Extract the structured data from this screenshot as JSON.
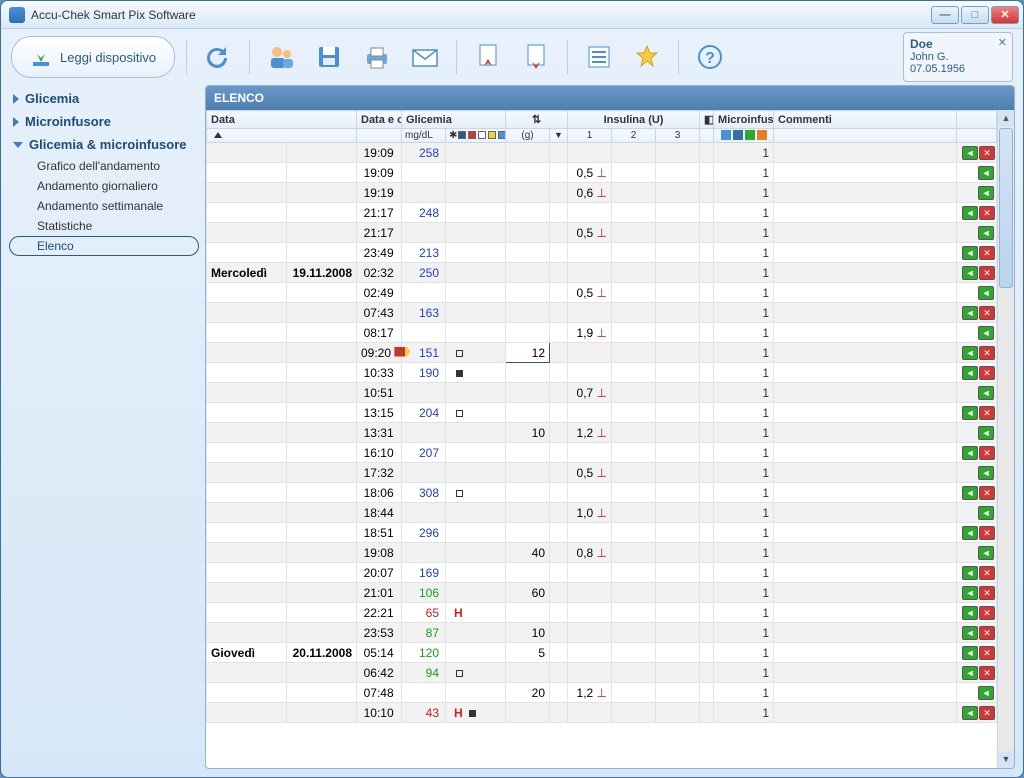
{
  "window": {
    "title": "Accu-Chek Smart Pix Software"
  },
  "toolbar": {
    "read_device": "Leggi dispositivo",
    "icons": [
      "undo",
      "users",
      "save",
      "print",
      "mail",
      "import",
      "export",
      "list-settings",
      "favorite",
      "help"
    ]
  },
  "patient": {
    "surname": "Doe",
    "firstname": "John G.",
    "dob": "07.05.1956"
  },
  "sidebar": {
    "items": [
      {
        "label": "Glicemia",
        "expanded": false,
        "bold": true
      },
      {
        "label": "Microinfusore",
        "expanded": false,
        "bold": true
      },
      {
        "label": "Glicemia & microinfusore",
        "expanded": true,
        "bold": true,
        "children": [
          {
            "label": "Grafico dell'andamento"
          },
          {
            "label": "Andamento giornaliero"
          },
          {
            "label": "Andamento settimanale"
          },
          {
            "label": "Statistiche"
          },
          {
            "label": "Elenco",
            "selected": true
          }
        ]
      }
    ]
  },
  "main": {
    "title": "ELENCO",
    "columns": {
      "data": "Data",
      "data_ora": "Data e ora",
      "glicemia": "Glicemia",
      "glicemia_unit": "mg/dL",
      "carb_unit": "(g)",
      "insulina": "Insulina (U)",
      "ins_cols": [
        "1",
        "2",
        "3"
      ],
      "microinfus": "Microinfus",
      "commenti": "Commenti"
    },
    "glicemia_marker_colors": [
      "#2C5A8A",
      "#D43535",
      "#FFFFFF",
      "#F4D03F",
      "#4A90D9",
      "#E67E22"
    ],
    "microinfus_hdr_colors": [
      "#4A90D9",
      "#3A6EA5",
      "#2FA82F",
      "#E67E22"
    ],
    "rows": [
      {
        "day": "",
        "date": "",
        "time": "19:09",
        "bg": "258",
        "bgc": "blue",
        "carb": "",
        "ins": "",
        "micro": "1",
        "act": [
          "g",
          "r"
        ]
      },
      {
        "day": "",
        "date": "",
        "time": "19:09",
        "bg": "",
        "carb": "",
        "ins": "0,5",
        "micro": "1",
        "act": [
          "g"
        ]
      },
      {
        "day": "",
        "date": "",
        "time": "19:19",
        "bg": "",
        "carb": "",
        "ins": "0,6",
        "micro": "1",
        "act": [
          "g"
        ]
      },
      {
        "day": "",
        "date": "",
        "time": "21:17",
        "bg": "248",
        "bgc": "blue",
        "carb": "",
        "ins": "",
        "micro": "1",
        "act": [
          "g",
          "r"
        ]
      },
      {
        "day": "",
        "date": "",
        "time": "21:17",
        "bg": "",
        "carb": "",
        "ins": "0,5",
        "micro": "1",
        "act": [
          "g"
        ]
      },
      {
        "day": "",
        "date": "",
        "time": "23:49",
        "bg": "213",
        "bgc": "blue",
        "carb": "",
        "ins": "",
        "micro": "1",
        "act": [
          "g",
          "r"
        ]
      },
      {
        "day": "Mercoledì",
        "date": "19.11.2008",
        "time": "02:32",
        "bg": "250",
        "bgc": "blue",
        "carb": "",
        "ins": "",
        "micro": "1",
        "act": [
          "g",
          "r"
        ],
        "split": true
      },
      {
        "day": "",
        "date": "",
        "time": "02:49",
        "bg": "",
        "carb": "",
        "ins": "0,5",
        "micro": "1",
        "act": [
          "g"
        ]
      },
      {
        "day": "",
        "date": "",
        "time": "07:43",
        "bg": "163",
        "bgc": "blue",
        "carb": "",
        "ins": "",
        "micro": "1",
        "act": [
          "g",
          "r"
        ]
      },
      {
        "day": "",
        "date": "",
        "time": "08:17",
        "bg": "",
        "carb": "",
        "ins": "1,9",
        "micro": "1",
        "act": [
          "g"
        ]
      },
      {
        "day": "",
        "date": "",
        "time": "09:20",
        "bg": "151",
        "bgc": "blue",
        "marker": "open",
        "carb": "12",
        "carb_edit": true,
        "pencil": true,
        "ins": "",
        "micro": "1",
        "act": [
          "g",
          "r"
        ]
      },
      {
        "day": "",
        "date": "",
        "time": "10:33",
        "bg": "190",
        "bgc": "blue",
        "marker": "filled",
        "carb": "",
        "ins": "",
        "micro": "1",
        "act": [
          "g",
          "r"
        ]
      },
      {
        "day": "",
        "date": "",
        "time": "10:51",
        "bg": "",
        "carb": "",
        "ins": "0,7",
        "micro": "1",
        "act": [
          "g"
        ]
      },
      {
        "day": "",
        "date": "",
        "time": "13:15",
        "bg": "204",
        "bgc": "blue",
        "marker": "open",
        "carb": "",
        "ins": "",
        "micro": "1",
        "act": [
          "g",
          "r"
        ]
      },
      {
        "day": "",
        "date": "",
        "time": "13:31",
        "bg": "",
        "carb": "10",
        "ins": "1,2",
        "micro": "1",
        "act": [
          "g"
        ]
      },
      {
        "day": "",
        "date": "",
        "time": "16:10",
        "bg": "207",
        "bgc": "blue",
        "carb": "",
        "ins": "",
        "micro": "1",
        "act": [
          "g",
          "r"
        ]
      },
      {
        "day": "",
        "date": "",
        "time": "17:32",
        "bg": "",
        "carb": "",
        "ins": "0,5",
        "micro": "1",
        "act": [
          "g"
        ]
      },
      {
        "day": "",
        "date": "",
        "time": "18:06",
        "bg": "308",
        "bgc": "blue",
        "marker": "open",
        "carb": "",
        "ins": "",
        "micro": "1",
        "act": [
          "g",
          "r"
        ]
      },
      {
        "day": "",
        "date": "",
        "time": "18:44",
        "bg": "",
        "carb": "",
        "ins": "1,0",
        "micro": "1",
        "act": [
          "g"
        ]
      },
      {
        "day": "",
        "date": "",
        "time": "18:51",
        "bg": "296",
        "bgc": "blue",
        "carb": "",
        "ins": "",
        "micro": "1",
        "act": [
          "g",
          "r"
        ]
      },
      {
        "day": "",
        "date": "",
        "time": "19:08",
        "bg": "",
        "carb": "40",
        "ins": "0,8",
        "micro": "1",
        "act": [
          "g"
        ]
      },
      {
        "day": "",
        "date": "",
        "time": "20:07",
        "bg": "169",
        "bgc": "blue",
        "carb": "",
        "ins": "",
        "micro": "1",
        "act": [
          "g",
          "r"
        ]
      },
      {
        "day": "",
        "date": "",
        "time": "21:01",
        "bg": "106",
        "bgc": "green",
        "carb": "60",
        "ins": "",
        "micro": "1",
        "act": [
          "g",
          "r"
        ]
      },
      {
        "day": "",
        "date": "",
        "time": "22:21",
        "bg": "65",
        "bgc": "red",
        "flag": "H",
        "carb": "",
        "ins": "",
        "micro": "1",
        "act": [
          "g",
          "r"
        ]
      },
      {
        "day": "",
        "date": "",
        "time": "23:53",
        "bg": "87",
        "bgc": "green",
        "carb": "10",
        "ins": "",
        "micro": "1",
        "act": [
          "g",
          "r"
        ]
      },
      {
        "day": "Giovedì",
        "date": "20.11.2008",
        "time": "05:14",
        "bg": "120",
        "bgc": "green",
        "carb": "5",
        "ins": "",
        "micro": "1",
        "act": [
          "g",
          "r"
        ],
        "split": true
      },
      {
        "day": "",
        "date": "",
        "time": "06:42",
        "bg": "94",
        "bgc": "green",
        "marker": "open",
        "carb": "",
        "ins": "",
        "micro": "1",
        "act": [
          "g",
          "r"
        ]
      },
      {
        "day": "",
        "date": "",
        "time": "07:48",
        "bg": "",
        "carb": "20",
        "ins": "1,2",
        "micro": "1",
        "act": [
          "g"
        ]
      },
      {
        "day": "",
        "date": "",
        "time": "10:10",
        "bg": "43",
        "bgc": "red",
        "flag": "H",
        "marker": "filled",
        "carb": "",
        "ins": "",
        "micro": "1",
        "act": [
          "g",
          "r"
        ]
      }
    ]
  },
  "colors": {
    "accent": "#2C5A8A",
    "blue": "#2040C0",
    "green": "#1A9A1A",
    "red": "#C02020",
    "action_green": "#2FA82F",
    "action_red": "#D43535"
  }
}
